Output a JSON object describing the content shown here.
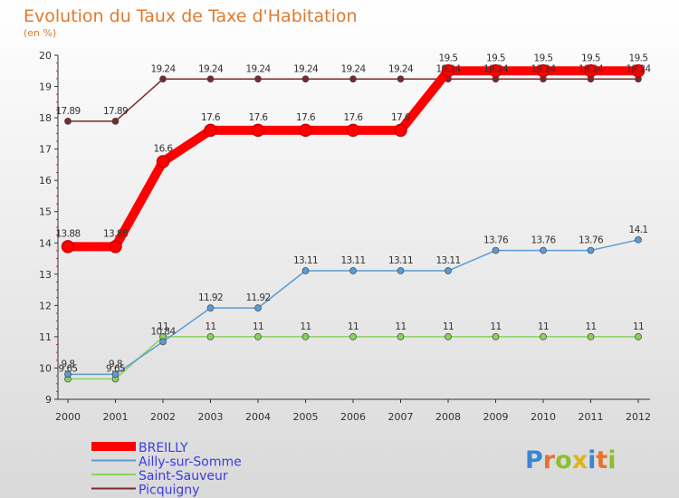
{
  "header": {
    "title": "Evolution du Taux de Taxe d'Habitation",
    "unit": "(en %)"
  },
  "brand": {
    "letters": [
      "P",
      "r",
      "o",
      "x",
      "i",
      "t",
      "i"
    ],
    "colors": [
      "#3a86d4",
      "#e8732a",
      "#8cbf2e",
      "#e0b21c",
      "#3a86d4",
      "#e8732a",
      "#8cbf2e"
    ]
  },
  "chart_data": {
    "type": "line",
    "x": [
      "2000",
      "2001",
      "2002",
      "2003",
      "2004",
      "2005",
      "2006",
      "2007",
      "2008",
      "2009",
      "2010",
      "2011",
      "2012"
    ],
    "ylim": [
      9,
      20
    ],
    "yticks": [
      "9",
      "10",
      "11",
      "12",
      "13",
      "14",
      "15",
      "16",
      "17",
      "18",
      "19",
      "20"
    ],
    "grid": false,
    "legend_position": "bottom-left",
    "series": [
      {
        "name": "Picquigny",
        "color": "#7a2a2a",
        "values": [
          17.89,
          17.89,
          19.24,
          19.24,
          19.24,
          19.24,
          19.24,
          19.24,
          19.24,
          19.24,
          19.24,
          19.24,
          19.24
        ],
        "labels": [
          "17.89",
          "17.89",
          "19.24",
          "19.24",
          "19.24",
          "19.24",
          "19.24",
          "19.24",
          "19.24",
          "19.24",
          "19.24",
          "19.24",
          "19.24"
        ]
      },
      {
        "name": "Saint-Sauveur",
        "color": "#8ad35a",
        "values": [
          9.65,
          9.65,
          11,
          11,
          11,
          11,
          11,
          11,
          11,
          11,
          11,
          11,
          11
        ],
        "labels": [
          "9.65",
          "9.65",
          "11",
          "11",
          "11",
          "11",
          "11",
          "11",
          "11",
          "11",
          "11",
          "11",
          "11"
        ]
      },
      {
        "name": "Ailly-sur-Somme",
        "color": "#5a9bd5",
        "values": [
          9.8,
          9.8,
          10.84,
          11.92,
          11.92,
          13.11,
          13.11,
          13.11,
          13.11,
          13.76,
          13.76,
          13.76,
          14.1
        ],
        "labels": [
          "9.8",
          "9.8",
          "10.84",
          "11.92",
          "11.92",
          "13.11",
          "13.11",
          "13.11",
          "13.11",
          "13.76",
          "13.76",
          "13.76",
          "14.1"
        ]
      },
      {
        "name": "BREILLY",
        "color": "#ff0000",
        "values": [
          13.88,
          13.88,
          16.6,
          17.6,
          17.6,
          17.6,
          17.6,
          17.6,
          19.5,
          19.5,
          19.5,
          19.5,
          19.5
        ],
        "labels": [
          "13.88",
          "13.88",
          "16.6",
          "17.6",
          "17.6",
          "17.6",
          "17.6",
          "17.6",
          "19.5",
          "19.5",
          "19.5",
          "19.5",
          "19.5"
        ]
      }
    ],
    "legend": [
      "BREILLY",
      "Ailly-sur-Somme",
      "Saint-Sauveur",
      "Picquigny"
    ]
  }
}
